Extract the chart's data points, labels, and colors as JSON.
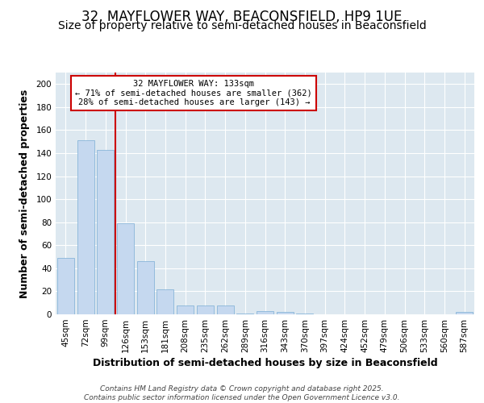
{
  "title": "32, MAYFLOWER WAY, BEACONSFIELD, HP9 1UE",
  "subtitle": "Size of property relative to semi-detached houses in Beaconsfield",
  "xlabel": "Distribution of semi-detached houses by size in Beaconsfield",
  "ylabel": "Number of semi-detached properties",
  "categories": [
    "45sqm",
    "72sqm",
    "99sqm",
    "126sqm",
    "153sqm",
    "181sqm",
    "208sqm",
    "235sqm",
    "262sqm",
    "289sqm",
    "316sqm",
    "343sqm",
    "370sqm",
    "397sqm",
    "424sqm",
    "452sqm",
    "479sqm",
    "506sqm",
    "533sqm",
    "560sqm",
    "587sqm"
  ],
  "values": [
    49,
    151,
    143,
    79,
    46,
    22,
    8,
    8,
    8,
    1,
    3,
    2,
    1,
    0,
    0,
    0,
    0,
    0,
    0,
    0,
    2
  ],
  "bar_color": "#c5d8ef",
  "bar_edge_color": "#7aadd4",
  "vline_color": "#cc0000",
  "vline_x_index": 3,
  "annotation_text": "32 MAYFLOWER WAY: 133sqm\n← 71% of semi-detached houses are smaller (362)\n28% of semi-detached houses are larger (143) →",
  "annotation_box_facecolor": "#ffffff",
  "annotation_box_edgecolor": "#cc0000",
  "plot_bg_color": "#dde8f0",
  "fig_bg_color": "#ffffff",
  "grid_color": "#ffffff",
  "footer_text": "Contains HM Land Registry data © Crown copyright and database right 2025.\nContains public sector information licensed under the Open Government Licence v3.0.",
  "ylim": [
    0,
    210
  ],
  "yticks": [
    0,
    20,
    40,
    60,
    80,
    100,
    120,
    140,
    160,
    180,
    200
  ],
  "title_fontsize": 12,
  "subtitle_fontsize": 10,
  "axis_label_fontsize": 9,
  "tick_fontsize": 7.5,
  "annotation_fontsize": 7.5,
  "footer_fontsize": 6.5
}
